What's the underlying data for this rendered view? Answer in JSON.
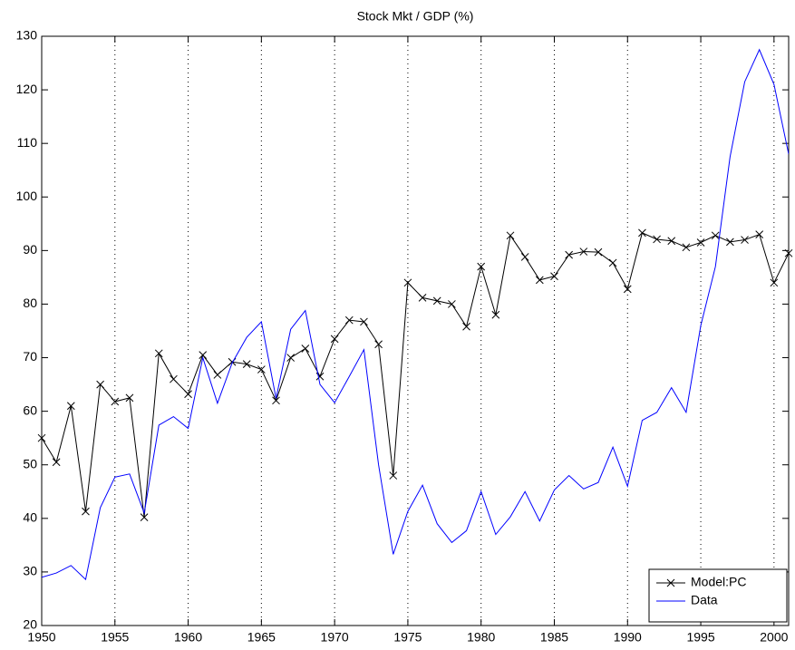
{
  "chart_data": {
    "type": "line",
    "title": "Stock Mkt / GDP (%)",
    "x": [
      1950,
      1951,
      1952,
      1953,
      1954,
      1955,
      1956,
      1957,
      1958,
      1959,
      1960,
      1961,
      1962,
      1963,
      1964,
      1965,
      1966,
      1967,
      1968,
      1969,
      1970,
      1971,
      1972,
      1973,
      1974,
      1975,
      1976,
      1977,
      1978,
      1979,
      1980,
      1981,
      1982,
      1983,
      1984,
      1985,
      1986,
      1987,
      1988,
      1989,
      1990,
      1991,
      1992,
      1993,
      1994,
      1995,
      1996,
      1997,
      1998,
      1999,
      2000,
      2001
    ],
    "series": [
      {
        "name": "Model:PC",
        "color": "#000000",
        "marker": "x",
        "values": [
          55,
          50.5,
          61,
          41.3,
          65,
          61.8,
          62.5,
          40.2,
          70.8,
          66,
          63.2,
          70.5,
          66.8,
          69.2,
          68.8,
          67.8,
          62,
          70,
          71.7,
          66.5,
          73.5,
          77,
          76.7,
          72.5,
          48,
          84,
          81.2,
          80.6,
          80,
          75.8,
          87,
          78,
          92.8,
          88.8,
          84.5,
          85.2,
          89.2,
          89.8,
          89.7,
          87.7,
          82.8,
          93.3,
          92.1,
          91.8,
          90.6,
          91.5,
          92.8,
          91.6,
          92,
          93,
          84,
          89.5
        ]
      },
      {
        "name": "Data",
        "color": "#0000ff",
        "values": [
          29,
          29.8,
          31.2,
          28.6,
          42,
          47.7,
          48.3,
          41,
          57.4,
          59,
          56.8,
          70,
          61.5,
          69,
          73.8,
          76.7,
          62.4,
          75.3,
          78.8,
          65,
          61.6,
          66.5,
          71.5,
          50,
          33.3,
          41.3,
          46.2,
          39,
          35.5,
          37.7,
          45,
          37,
          40.3,
          45,
          39.5,
          45.3,
          48,
          45.5,
          46.7,
          53.3,
          46,
          58.3,
          59.8,
          64.4,
          59.8,
          76,
          87,
          107.5,
          121.5,
          127.5,
          121,
          108
        ]
      }
    ],
    "xlim": [
      1950,
      2001
    ],
    "xticks": [
      1950,
      1955,
      1960,
      1965,
      1970,
      1975,
      1980,
      1985,
      1990,
      1995,
      2000
    ],
    "ylim": [
      20,
      130
    ],
    "yticks": [
      20,
      30,
      40,
      50,
      60,
      70,
      80,
      90,
      100,
      110,
      120,
      130
    ],
    "grid": "x",
    "legend": "lower right"
  }
}
